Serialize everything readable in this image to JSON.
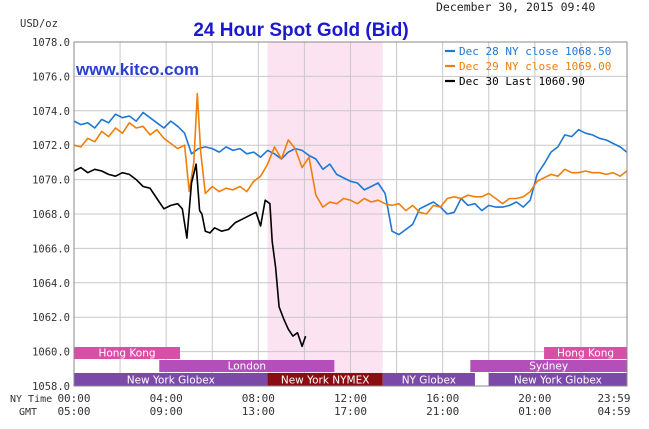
{
  "header": {
    "unit": "USD/oz",
    "title": "24 Hour Spot Gold (Bid)",
    "datetime": "December 30, 2015 09:40",
    "brand": "www.kitco.com"
  },
  "legend": [
    {
      "label": "Dec 28 NY close 1068.50",
      "color": "#1f77d4"
    },
    {
      "label": "Dec 29 NY close 1069.00",
      "color": "#f07f0a"
    },
    {
      "label": "Dec 30 Last 1060.90",
      "color": "#000000"
    }
  ],
  "time_labels": {
    "ny_row_label": "NY Time",
    "gmt_row_label": "GMT",
    "ny": [
      "00:00",
      "04:00",
      "08:00",
      "12:00",
      "16:00",
      "20:00",
      "23:59"
    ],
    "gmt": [
      "05:00",
      "09:00",
      "13:00",
      "17:00",
      "21:00",
      "01:00",
      "04:59"
    ]
  },
  "sessions": {
    "row1": [
      {
        "label": "Hong Kong",
        "start": 0,
        "end": 4.6,
        "color": "#d94fa8"
      },
      {
        "label": "Hong Kong",
        "start": 20.4,
        "end": 24,
        "color": "#d94fa8"
      }
    ],
    "row2": [
      {
        "label": "London",
        "start": 3.7,
        "end": 11.3,
        "color": "#b44eb8"
      },
      {
        "label": "Sydney",
        "start": 17.2,
        "end": 24,
        "color": "#b44eb8"
      }
    ],
    "row3": [
      {
        "label": "New York Globex",
        "start": 0,
        "end": 8.4,
        "color": "#7b4aa8"
      },
      {
        "label": "New York NYMEX",
        "start": 8.4,
        "end": 13.4,
        "color": "#8b0d14"
      },
      {
        "label": "NY Globex",
        "start": 13.4,
        "end": 17.4,
        "color": "#7b4aa8"
      },
      {
        "label": "New York Globex",
        "start": 18.0,
        "end": 24,
        "color": "#7b4aa8"
      }
    ]
  },
  "colors": {
    "nymex_band": "#fbe3f1",
    "grid": "#c8c8c8",
    "background": "#ffffff"
  },
  "chart_data": {
    "type": "line",
    "title": "24 Hour Spot Gold (Bid)",
    "ylabel": "USD/oz",
    "xlabel": "NY Time / GMT",
    "xlim": [
      0,
      24
    ],
    "ylim": [
      1058,
      1078
    ],
    "y_ticks": [
      "1058.0",
      "1060.0",
      "1062.0",
      "1064.0",
      "1066.0",
      "1068.0",
      "1070.0",
      "1072.0",
      "1074.0",
      "1076.0",
      "1078.0"
    ],
    "highlight_band": [
      8.4,
      13.4
    ],
    "grid": true,
    "legend_position": "top-right",
    "series": [
      {
        "name": "Dec 28 NY close 1068.50",
        "color": "#1f77d4",
        "x": [
          0,
          0.3,
          0.6,
          0.9,
          1.2,
          1.5,
          1.8,
          2.1,
          2.4,
          2.7,
          3.0,
          3.3,
          3.6,
          3.9,
          4.2,
          4.5,
          4.8,
          5.1,
          5.4,
          5.7,
          6.0,
          6.3,
          6.6,
          6.9,
          7.2,
          7.5,
          7.8,
          8.1,
          8.4,
          8.7,
          9.0,
          9.3,
          9.6,
          9.9,
          10.2,
          10.5,
          10.8,
          11.1,
          11.4,
          11.7,
          12.0,
          12.3,
          12.6,
          12.9,
          13.2,
          13.5,
          13.8,
          14.1,
          14.4,
          14.7,
          15.0,
          15.3,
          15.6,
          15.9,
          16.2,
          16.5,
          16.8,
          17.1,
          17.4,
          17.7,
          18.0,
          18.3,
          18.6,
          18.9,
          19.2,
          19.5,
          19.8,
          20.1,
          20.4,
          20.7,
          21.0,
          21.3,
          21.6,
          21.9,
          22.2,
          22.5,
          22.8,
          23.1,
          23.4,
          23.7,
          23.99
        ],
        "values": [
          1073.4,
          1073.2,
          1073.3,
          1073.0,
          1073.5,
          1073.3,
          1073.8,
          1073.6,
          1073.7,
          1073.4,
          1073.9,
          1073.6,
          1073.3,
          1073.0,
          1073.4,
          1073.1,
          1072.7,
          1071.5,
          1071.8,
          1071.9,
          1071.8,
          1071.6,
          1071.9,
          1071.7,
          1071.8,
          1071.5,
          1071.6,
          1071.3,
          1071.7,
          1071.5,
          1071.2,
          1071.6,
          1071.8,
          1071.7,
          1071.4,
          1071.2,
          1070.6,
          1070.9,
          1070.3,
          1070.1,
          1069.9,
          1069.8,
          1069.4,
          1069.6,
          1069.8,
          1069.2,
          1067.0,
          1066.8,
          1067.1,
          1067.4,
          1068.3,
          1068.5,
          1068.7,
          1068.4,
          1068.0,
          1068.1,
          1068.9,
          1068.5,
          1068.6,
          1068.2,
          1068.5,
          1068.4,
          1068.4,
          1068.5,
          1068.7,
          1068.4,
          1068.8,
          1070.3,
          1070.9,
          1071.6,
          1071.9,
          1072.6,
          1072.5,
          1072.9,
          1072.7,
          1072.6,
          1072.4,
          1072.3,
          1072.1,
          1071.9,
          1071.6
        ]
      },
      {
        "name": "Dec 29 NY close 1069.00",
        "color": "#f07f0a",
        "x": [
          0,
          0.3,
          0.6,
          0.9,
          1.2,
          1.5,
          1.8,
          2.1,
          2.4,
          2.7,
          3.0,
          3.3,
          3.6,
          3.9,
          4.2,
          4.5,
          4.8,
          5.0,
          5.2,
          5.35,
          5.5,
          5.7,
          6.0,
          6.3,
          6.6,
          6.9,
          7.2,
          7.5,
          7.8,
          8.1,
          8.4,
          8.7,
          9.0,
          9.3,
          9.6,
          9.9,
          10.2,
          10.5,
          10.8,
          11.1,
          11.4,
          11.7,
          12.0,
          12.3,
          12.6,
          12.9,
          13.2,
          13.5,
          13.8,
          14.1,
          14.4,
          14.7,
          15.0,
          15.3,
          15.6,
          15.9,
          16.2,
          16.5,
          16.8,
          17.1,
          17.4,
          17.7,
          18.0,
          18.3,
          18.6,
          18.9,
          19.2,
          19.5,
          19.8,
          20.1,
          20.4,
          20.7,
          21.0,
          21.3,
          21.6,
          21.9,
          22.2,
          22.5,
          22.8,
          23.1,
          23.4,
          23.7,
          23.99
        ],
        "values": [
          1072.0,
          1071.9,
          1072.4,
          1072.2,
          1072.8,
          1072.5,
          1073.0,
          1072.7,
          1073.3,
          1073.0,
          1073.1,
          1072.6,
          1072.9,
          1072.4,
          1072.1,
          1071.8,
          1072.0,
          1069.3,
          1071.0,
          1075.0,
          1071.6,
          1069.2,
          1069.6,
          1069.3,
          1069.5,
          1069.4,
          1069.6,
          1069.3,
          1069.9,
          1070.2,
          1070.9,
          1071.9,
          1071.2,
          1072.3,
          1071.8,
          1070.7,
          1071.3,
          1069.1,
          1068.4,
          1068.7,
          1068.6,
          1068.9,
          1068.8,
          1068.6,
          1068.9,
          1068.7,
          1068.8,
          1068.6,
          1068.5,
          1068.6,
          1068.2,
          1068.5,
          1068.1,
          1068.0,
          1068.5,
          1068.4,
          1068.9,
          1069.0,
          1068.9,
          1069.1,
          1069.0,
          1069.0,
          1069.2,
          1068.9,
          1068.6,
          1068.9,
          1068.9,
          1069.0,
          1069.3,
          1069.9,
          1070.1,
          1070.3,
          1070.2,
          1070.6,
          1070.4,
          1070.4,
          1070.5,
          1070.4,
          1070.4,
          1070.3,
          1070.4,
          1070.2,
          1070.5
        ]
      },
      {
        "name": "Dec 30 Last 1060.90",
        "color": "#000000",
        "x": [
          0,
          0.3,
          0.6,
          0.9,
          1.2,
          1.5,
          1.8,
          2.1,
          2.4,
          2.7,
          3.0,
          3.3,
          3.6,
          3.9,
          4.2,
          4.5,
          4.7,
          4.9,
          5.1,
          5.3,
          5.45,
          5.55,
          5.7,
          5.9,
          6.1,
          6.4,
          6.7,
          7.0,
          7.3,
          7.6,
          7.9,
          8.1,
          8.3,
          8.5,
          8.6,
          8.75,
          8.9,
          9.1,
          9.3,
          9.5,
          9.7,
          9.9,
          10.05
        ],
        "values": [
          1070.5,
          1070.7,
          1070.4,
          1070.6,
          1070.5,
          1070.3,
          1070.2,
          1070.4,
          1070.3,
          1070.0,
          1069.6,
          1069.5,
          1068.9,
          1068.3,
          1068.5,
          1068.6,
          1068.3,
          1066.6,
          1069.8,
          1070.9,
          1068.2,
          1068.0,
          1067.0,
          1066.9,
          1067.2,
          1067.0,
          1067.1,
          1067.5,
          1067.7,
          1067.9,
          1068.1,
          1067.3,
          1068.8,
          1068.6,
          1066.4,
          1064.9,
          1062.6,
          1061.9,
          1061.3,
          1060.9,
          1061.1,
          1060.3,
          1060.9
        ]
      }
    ]
  }
}
